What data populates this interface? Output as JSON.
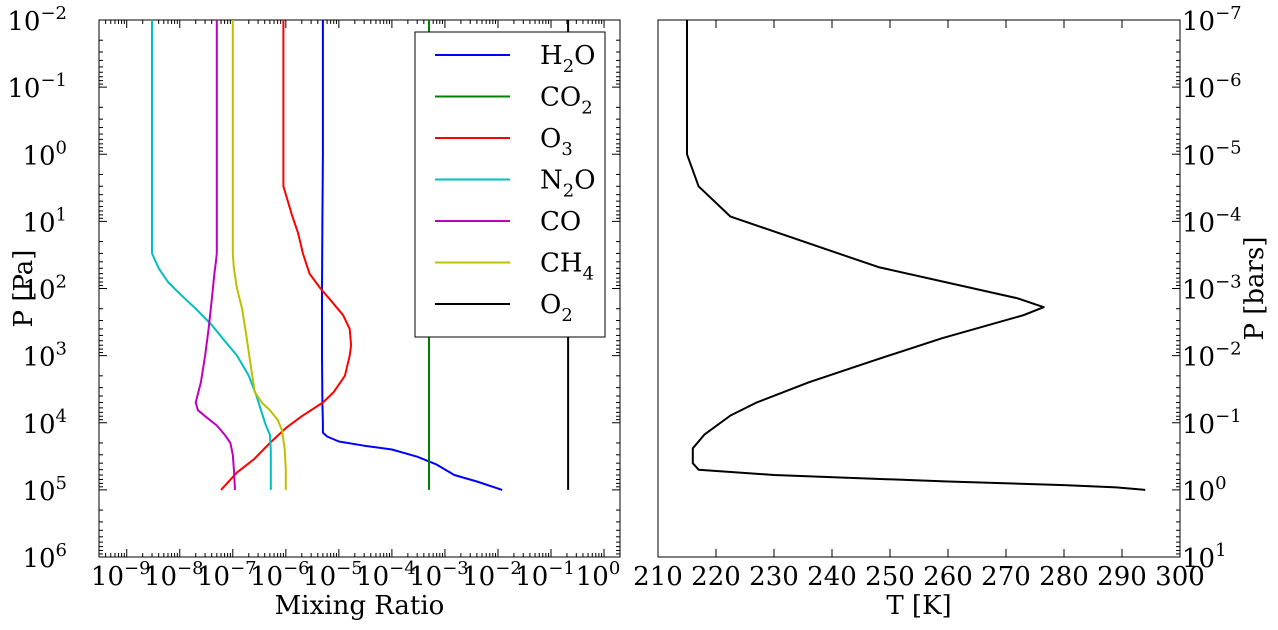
{
  "chart_data": [
    {
      "type": "line",
      "xlabel": "Mixing Ratio",
      "ylabel": "P [Pa]",
      "xscale": "log",
      "yscale": "log",
      "yinverted": true,
      "xlim": [
        3e-10,
        2
      ],
      "ylim": [
        1000000,
        0.01
      ],
      "legend_position": "top-right",
      "x_ticks": [
        {
          "base": "10",
          "exp": "−9"
        },
        {
          "base": "10",
          "exp": "−8"
        },
        {
          "base": "10",
          "exp": "−7"
        },
        {
          "base": "10",
          "exp": "−6"
        },
        {
          "base": "10",
          "exp": "−5"
        },
        {
          "base": "10",
          "exp": "−4"
        },
        {
          "base": "10",
          "exp": "−3"
        },
        {
          "base": "10",
          "exp": "−2"
        },
        {
          "base": "10",
          "exp": "−1"
        },
        {
          "base": "10",
          "exp": "0"
        }
      ],
      "y_ticks": [
        {
          "base": "10",
          "exp": "−2"
        },
        {
          "base": "10",
          "exp": "−1"
        },
        {
          "base": "10",
          "exp": "0"
        },
        {
          "base": "10",
          "exp": "1"
        },
        {
          "base": "10",
          "exp": "2"
        },
        {
          "base": "10",
          "exp": "3"
        },
        {
          "base": "10",
          "exp": "4"
        },
        {
          "base": "10",
          "exp": "5"
        },
        {
          "base": "10",
          "exp": "6"
        }
      ],
      "series": [
        {
          "name": "H2O",
          "label": {
            "pre": "H",
            "sub": "2",
            "post": "O"
          },
          "color": "#0000ff",
          "points": [
            [
              5e-06,
              0.01
            ],
            [
              5e-06,
              1
            ],
            [
              4.9e-06,
              10
            ],
            [
              4.8e-06,
              100
            ],
            [
              4.8e-06,
              1000
            ],
            [
              4.9e-06,
              5000
            ],
            [
              5e-06,
              10000
            ],
            [
              5e-06,
              14000
            ],
            [
              6e-06,
              16000
            ],
            [
              1e-05,
              19000
            ],
            [
              3e-05,
              22000
            ],
            [
              0.0001,
              25000
            ],
            [
              0.0003,
              32000
            ],
            [
              0.0007,
              42000
            ],
            [
              0.0015,
              60000
            ],
            [
              0.004,
              75000
            ],
            [
              0.012,
              100000
            ]
          ]
        },
        {
          "name": "CO2",
          "label": {
            "pre": "CO",
            "sub": "2",
            "post": ""
          },
          "color": "#008000",
          "points": [
            [
              0.0005,
              0.01
            ],
            [
              0.0005,
              100000
            ]
          ]
        },
        {
          "name": "O3",
          "label": {
            "pre": "O",
            "sub": "3",
            "post": ""
          },
          "color": "#ff0000",
          "points": [
            [
              9e-07,
              0.01
            ],
            [
              9e-07,
              1
            ],
            [
              9e-07,
              3
            ],
            [
              1.3e-06,
              8
            ],
            [
              1.7e-06,
              15
            ],
            [
              2.1e-06,
              30
            ],
            [
              2.8e-06,
              60
            ],
            [
              4.5e-06,
              100
            ],
            [
              7e-06,
              150
            ],
            [
              1.2e-05,
              250
            ],
            [
              1.6e-05,
              400
            ],
            [
              1.7e-05,
              700
            ],
            [
              1.6e-05,
              1000
            ],
            [
              1.3e-05,
              2000
            ],
            [
              8e-06,
              3500
            ],
            [
              5e-06,
              5000
            ],
            [
              2e-06,
              8000
            ],
            [
              1e-06,
              12000
            ],
            [
              5e-07,
              20000
            ],
            [
              2.5e-07,
              35000
            ],
            [
              1.2e-07,
              55000
            ],
            [
              6e-08,
              100000
            ]
          ]
        },
        {
          "name": "N2O",
          "label": {
            "pre": "N",
            "sub": "2",
            "post": "O"
          },
          "color": "#00bfbf",
          "points": [
            [
              3e-09,
              0.01
            ],
            [
              3e-09,
              1
            ],
            [
              3e-09,
              30
            ],
            [
              4e-09,
              50
            ],
            [
              6e-09,
              80
            ],
            [
              1e-08,
              120
            ],
            [
              2e-08,
              200
            ],
            [
              4e-08,
              350
            ],
            [
              7e-08,
              600
            ],
            [
              1.2e-07,
              1000
            ],
            [
              2e-07,
              2000
            ],
            [
              2.8e-07,
              4000
            ],
            [
              3.5e-07,
              7000
            ],
            [
              4.2e-07,
              11000
            ],
            [
              5e-07,
              15000
            ],
            [
              5.2e-07,
              25000
            ],
            [
              5.2e-07,
              100000
            ]
          ]
        },
        {
          "name": "CO",
          "label": {
            "pre": "CO",
            "sub": "",
            "post": ""
          },
          "color": "#bf00bf",
          "points": [
            [
              5e-08,
              0.01
            ],
            [
              5e-08,
              1
            ],
            [
              5e-08,
              30
            ],
            [
              4.8e-08,
              40
            ],
            [
              4.5e-08,
              60
            ],
            [
              4e-08,
              150
            ],
            [
              3.5e-08,
              400
            ],
            [
              3e-08,
              1000
            ],
            [
              2.5e-08,
              2500
            ],
            [
              2e-08,
              5000
            ],
            [
              2.2e-08,
              6500
            ],
            [
              3e-08,
              8000
            ],
            [
              5e-08,
              11000
            ],
            [
              7e-08,
              15000
            ],
            [
              9e-08,
              20000
            ],
            [
              1e-07,
              30000
            ],
            [
              1.05e-07,
              50000
            ],
            [
              1.1e-07,
              100000
            ]
          ]
        },
        {
          "name": "CH4",
          "label": {
            "pre": "CH",
            "sub": "4",
            "post": ""
          },
          "color": "#bfbf00",
          "points": [
            [
              1e-07,
              0.01
            ],
            [
              1e-07,
              1
            ],
            [
              1e-07,
              30
            ],
            [
              1.05e-07,
              50
            ],
            [
              1.2e-07,
              100
            ],
            [
              1.5e-07,
              200
            ],
            [
              1.8e-07,
              500
            ],
            [
              2.2e-07,
              1500
            ],
            [
              2.6e-07,
              3500
            ],
            [
              3.5e-07,
              5000
            ],
            [
              5e-07,
              6500
            ],
            [
              7e-07,
              9000
            ],
            [
              8.5e-07,
              13000
            ],
            [
              9.5e-07,
              25000
            ],
            [
              1e-06,
              50000
            ],
            [
              1e-06,
              100000
            ]
          ]
        },
        {
          "name": "O2",
          "label": {
            "pre": "O",
            "sub": "2",
            "post": ""
          },
          "color": "#000000",
          "points": [
            [
              0.21,
              0.01
            ],
            [
              0.21,
              100000
            ]
          ]
        }
      ]
    },
    {
      "type": "line",
      "xlabel": "T [K]",
      "ylabel": "P [bars]",
      "yscale": "log",
      "yinverted": true,
      "xlim": [
        210,
        300
      ],
      "ylim": [
        10,
        1e-07
      ],
      "x_ticks": [
        "210",
        "220",
        "230",
        "240",
        "250",
        "260",
        "270",
        "280",
        "290",
        "300"
      ],
      "y_ticks": [
        {
          "base": "10",
          "exp": "−7"
        },
        {
          "base": "10",
          "exp": "−6"
        },
        {
          "base": "10",
          "exp": "−5"
        },
        {
          "base": "10",
          "exp": "−4"
        },
        {
          "base": "10",
          "exp": "−3"
        },
        {
          "base": "10",
          "exp": "−2"
        },
        {
          "base": "10",
          "exp": "−1"
        },
        {
          "base": "10",
          "exp": "0"
        },
        {
          "base": "10",
          "exp": "1"
        }
      ],
      "series": [
        {
          "color": "#000000",
          "points": [
            [
              215,
              1e-07
            ],
            [
              215,
              1e-06
            ],
            [
              215,
              1e-05
            ],
            [
              217,
              3e-05
            ],
            [
              222.5,
              8.5e-05
            ],
            [
              248,
              0.00048
            ],
            [
              272,
              0.0014
            ],
            [
              276.5,
              0.0019
            ],
            [
              273,
              0.0025
            ],
            [
              259,
              0.0055
            ],
            [
              247,
              0.012
            ],
            [
              236,
              0.025
            ],
            [
              227,
              0.05
            ],
            [
              222.5,
              0.078
            ],
            [
              218,
              0.15
            ],
            [
              216,
              0.24
            ],
            [
              216,
              0.4
            ],
            [
              217,
              0.5
            ],
            [
              230,
              0.6
            ],
            [
              260,
              0.75
            ],
            [
              280,
              0.85
            ],
            [
              289,
              0.92
            ],
            [
              294,
              1.0
            ]
          ]
        }
      ]
    }
  ]
}
